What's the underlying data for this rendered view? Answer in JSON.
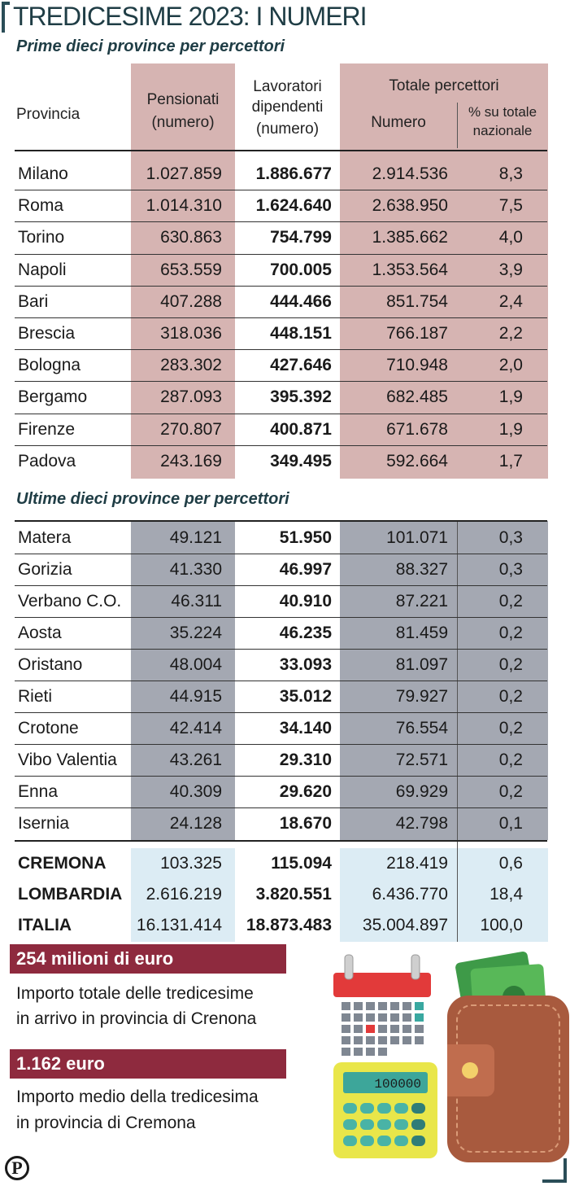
{
  "title": "TREDICESIME 2023: I NUMERI",
  "section_top": "Prime dieci province per percettori",
  "section_bottom": "Ultime dieci province per percettori",
  "headers": {
    "provincia": "Provincia",
    "pensionati_1": "Pensionati",
    "pensionati_2": "(numero)",
    "lavoratori_1": "Lavoratori",
    "lavoratori_2": "dipendenti",
    "lavoratori_3": "(numero)",
    "totale": "Totale percettori",
    "numero": "Numero",
    "pct_1": "% su totale",
    "pct_2": "nazionale"
  },
  "top_rows": [
    [
      "Milano",
      "1.027.859",
      "1.886.677",
      "2.914.536",
      "8,3"
    ],
    [
      "Roma",
      "1.014.310",
      "1.624.640",
      "2.638.950",
      "7,5"
    ],
    [
      "Torino",
      "630.863",
      "754.799",
      "1.385.662",
      "4,0"
    ],
    [
      "Napoli",
      "653.559",
      "700.005",
      "1.353.564",
      "3,9"
    ],
    [
      "Bari",
      "407.288",
      "444.466",
      "851.754",
      "2,4"
    ],
    [
      "Brescia",
      "318.036",
      "448.151",
      "766.187",
      "2,2"
    ],
    [
      "Bologna",
      "283.302",
      "427.646",
      "710.948",
      "2,0"
    ],
    [
      "Bergamo",
      "287.093",
      "395.392",
      "682.485",
      "1,9"
    ],
    [
      "Firenze",
      "270.807",
      "400.871",
      "671.678",
      "1,9"
    ],
    [
      "Padova",
      "243.169",
      "349.495",
      "592.664",
      "1,7"
    ]
  ],
  "bottom_rows": [
    [
      "Matera",
      "49.121",
      "51.950",
      "101.071",
      "0,3"
    ],
    [
      "Gorizia",
      "41.330",
      "46.997",
      "88.327",
      "0,3"
    ],
    [
      "Verbano C.O.",
      "46.311",
      "40.910",
      "87.221",
      "0,2"
    ],
    [
      "Aosta",
      "35.224",
      "46.235",
      "81.459",
      "0,2"
    ],
    [
      "Oristano",
      "48.004",
      "33.093",
      "81.097",
      "0,2"
    ],
    [
      "Rieti",
      "44.915",
      "35.012",
      "79.927",
      "0,2"
    ],
    [
      "Crotone",
      "42.414",
      "34.140",
      "76.554",
      "0,2"
    ],
    [
      "Vibo Valentia",
      "43.261",
      "29.310",
      "72.571",
      "0,2"
    ],
    [
      "Enna",
      "40.309",
      "29.620",
      "69.929",
      "0,2"
    ],
    [
      "Isernia",
      "24.128",
      "18.670",
      "42.798",
      "0,1"
    ]
  ],
  "total_rows": [
    [
      "CREMONA",
      "103.325",
      "115.094",
      "218.419",
      "0,6"
    ],
    [
      "LOMBARDIA",
      "2.616.219",
      "3.820.551",
      "6.436.770",
      "18,4"
    ],
    [
      "ITALIA",
      "16.131.414",
      "18.873.483",
      "35.004.897",
      "100,0"
    ]
  ],
  "fact1": {
    "headline": "254 milioni di euro",
    "line1": "Importo totale delle tredicesime",
    "line2": "in arrivo in provincia di Crenona"
  },
  "fact2": {
    "headline": "1.162 euro",
    "line1": "Importo medio della tredicesima",
    "line2": "in provincia di Cremona"
  },
  "calculator_display": "100000",
  "logo_letter": "P",
  "colors": {
    "title": "#1f3d45",
    "pink": "#d6b4b2",
    "grey": "#a4a8b2",
    "lightblue": "#dcecf4",
    "red_box": "#8e2a3e"
  }
}
